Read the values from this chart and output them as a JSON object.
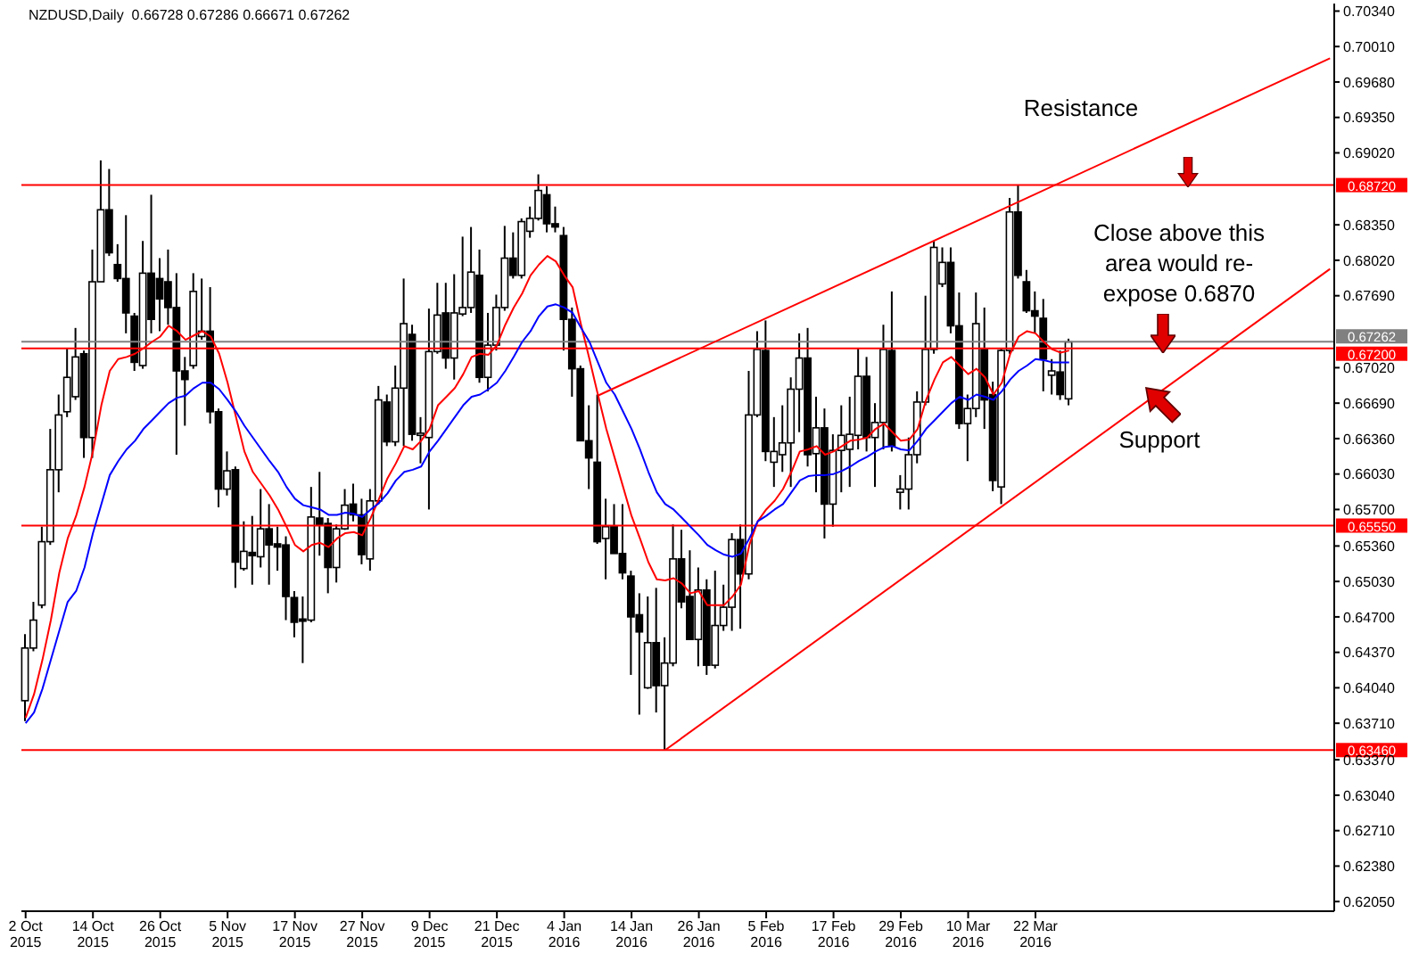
{
  "chart_data": {
    "type": "candlestick",
    "title": "NZDUSD,Daily  0.66728 0.67286 0.66671 0.67262",
    "categories": [
      "2 Oct 2015",
      null,
      null,
      null,
      null,
      null,
      null,
      null,
      "14 Oct 2015",
      null,
      null,
      null,
      null,
      null,
      null,
      null,
      "26 Oct 2015",
      null,
      null,
      null,
      null,
      null,
      null,
      null,
      "5 Nov 2015",
      null,
      null,
      null,
      null,
      null,
      null,
      null,
      "17 Nov 2015",
      null,
      null,
      null,
      null,
      null,
      null,
      null,
      "27 Nov 2015",
      null,
      null,
      null,
      null,
      null,
      null,
      null,
      "9 Dec 2015",
      null,
      null,
      null,
      null,
      null,
      null,
      null,
      "21 Dec 2015",
      null,
      null,
      null,
      null,
      null,
      null,
      null,
      "4 Jan 2016",
      null,
      null,
      null,
      null,
      null,
      null,
      null,
      "14 Jan 2016",
      null,
      null,
      null,
      null,
      null,
      null,
      null,
      "26 Jan 2016",
      null,
      null,
      null,
      null,
      null,
      null,
      null,
      "5 Feb 2016",
      null,
      null,
      null,
      null,
      null,
      null,
      null,
      "17 Feb 2016",
      null,
      null,
      null,
      null,
      null,
      null,
      null,
      "29 Feb 2016",
      null,
      null,
      null,
      null,
      null,
      null,
      null,
      "10 Mar 2016",
      null,
      null,
      null,
      null,
      null,
      null,
      null,
      "22 Mar 2016",
      null,
      null,
      null,
      null,
      null,
      null,
      null,
      null,
      null,
      null,
      null,
      null,
      null,
      null,
      null,
      null,
      null,
      null,
      null,
      null,
      null,
      null,
      null,
      null,
      null,
      null,
      null,
      null,
      null,
      null,
      null,
      null,
      null,
      null,
      null
    ],
    "ohlc": [
      [
        0.6392,
        0.6454,
        0.6373,
        0.6441
      ],
      [
        0.6441,
        0.6484,
        0.6438,
        0.6467
      ],
      [
        0.6481,
        0.6554,
        0.6478,
        0.654
      ],
      [
        0.654,
        0.6645,
        0.6537,
        0.6607
      ],
      [
        0.6607,
        0.6677,
        0.6586,
        0.6658
      ],
      [
        0.6661,
        0.672,
        0.6656,
        0.6693
      ],
      [
        0.6675,
        0.6739,
        0.6672,
        0.6712
      ],
      [
        0.6715,
        0.6718,
        0.6618,
        0.6637
      ],
      [
        0.6637,
        0.6812,
        0.6618,
        0.6782
      ],
      [
        0.6782,
        0.6895,
        0.6782,
        0.6849
      ],
      [
        0.6849,
        0.6887,
        0.6806,
        0.6809
      ],
      [
        0.6798,
        0.6817,
        0.6782,
        0.6785
      ],
      [
        0.6785,
        0.6844,
        0.6734,
        0.6753
      ],
      [
        0.675,
        0.6753,
        0.6699,
        0.6707
      ],
      [
        0.6704,
        0.682,
        0.6701,
        0.679
      ],
      [
        0.679,
        0.6863,
        0.6734,
        0.6747
      ],
      [
        0.6785,
        0.6804,
        0.6736,
        0.6766
      ],
      [
        0.6782,
        0.6812,
        0.6742,
        0.6758
      ],
      [
        0.6758,
        0.679,
        0.6621,
        0.6699
      ],
      [
        0.6699,
        0.6712,
        0.6648,
        0.6691
      ],
      [
        0.6704,
        0.679,
        0.6701,
        0.6773
      ],
      [
        0.6731,
        0.6785,
        0.6728,
        0.6736
      ],
      [
        0.6736,
        0.6777,
        0.665,
        0.6661
      ],
      [
        0.6661,
        0.6664,
        0.6572,
        0.6589
      ],
      [
        0.6589,
        0.6624,
        0.6583,
        0.6606
      ],
      [
        0.6607,
        0.661,
        0.6497,
        0.6521
      ],
      [
        0.6515,
        0.6559,
        0.6513,
        0.6531
      ],
      [
        0.653,
        0.6564,
        0.65,
        0.6527
      ],
      [
        0.6526,
        0.6589,
        0.6516,
        0.6552
      ],
      [
        0.6552,
        0.6575,
        0.65,
        0.6537
      ],
      [
        0.6538,
        0.6554,
        0.6513,
        0.6535
      ],
      [
        0.6537,
        0.6545,
        0.6467,
        0.6489
      ],
      [
        0.6488,
        0.6494,
        0.6451,
        0.6465
      ],
      [
        0.6468,
        0.6489,
        0.6427,
        0.6466
      ],
      [
        0.6467,
        0.6591,
        0.6465,
        0.6563
      ],
      [
        0.6562,
        0.6605,
        0.6527,
        0.6556
      ],
      [
        0.6557,
        0.6562,
        0.6492,
        0.6516
      ],
      [
        0.6516,
        0.6556,
        0.6502,
        0.6552
      ],
      [
        0.6552,
        0.6589,
        0.6551,
        0.6574
      ],
      [
        0.6575,
        0.6594,
        0.6559,
        0.6565
      ],
      [
        0.6565,
        0.658,
        0.6519,
        0.6528
      ],
      [
        0.6524,
        0.6589,
        0.6513,
        0.6578
      ],
      [
        0.6578,
        0.6685,
        0.6575,
        0.6672
      ],
      [
        0.667,
        0.6677,
        0.6629,
        0.6633
      ],
      [
        0.6633,
        0.6704,
        0.6629,
        0.6683
      ],
      [
        0.6683,
        0.6785,
        0.6629,
        0.6743
      ],
      [
        0.6733,
        0.6742,
        0.6634,
        0.664
      ],
      [
        0.6639,
        0.6656,
        0.6613,
        0.6641
      ],
      [
        0.6637,
        0.6757,
        0.657,
        0.6717
      ],
      [
        0.6717,
        0.6781,
        0.6715,
        0.6751
      ],
      [
        0.6753,
        0.6781,
        0.6701,
        0.6711
      ],
      [
        0.6711,
        0.6789,
        0.6691,
        0.6753
      ],
      [
        0.6752,
        0.6824,
        0.675,
        0.6758
      ],
      [
        0.6758,
        0.6833,
        0.6753,
        0.6791
      ],
      [
        0.6788,
        0.6812,
        0.6688,
        0.6693
      ],
      [
        0.6693,
        0.6753,
        0.668,
        0.6723
      ],
      [
        0.6723,
        0.677,
        0.6718,
        0.6758
      ],
      [
        0.6758,
        0.6834,
        0.6755,
        0.6804
      ],
      [
        0.6804,
        0.6828,
        0.6785,
        0.6788
      ],
      [
        0.6788,
        0.6841,
        0.6785,
        0.6838
      ],
      [
        0.6829,
        0.6852,
        0.6823,
        0.6841
      ],
      [
        0.6841,
        0.6882,
        0.6839,
        0.6867
      ],
      [
        0.6863,
        0.6871,
        0.6828,
        0.6836
      ],
      [
        0.6836,
        0.6852,
        0.6828,
        0.6833
      ],
      [
        0.6825,
        0.6833,
        0.6718,
        0.6747
      ],
      [
        0.6747,
        0.6758,
        0.6675,
        0.6701
      ],
      [
        0.6701,
        0.6704,
        0.6634,
        0.6634
      ],
      [
        0.6634,
        0.6667,
        0.6589,
        0.6618
      ],
      [
        0.6614,
        0.6677,
        0.6538,
        0.654
      ],
      [
        0.6543,
        0.658,
        0.6505,
        0.6554
      ],
      [
        0.6554,
        0.6575,
        0.6529,
        0.6529
      ],
      [
        0.6529,
        0.6575,
        0.6505,
        0.6511
      ],
      [
        0.6508,
        0.6513,
        0.6416,
        0.647
      ],
      [
        0.6472,
        0.6492,
        0.6379,
        0.6456
      ],
      [
        0.6404,
        0.6489,
        0.6403,
        0.6446
      ],
      [
        0.6446,
        0.6497,
        0.6381,
        0.6406
      ],
      [
        0.6406,
        0.6451,
        0.6346,
        0.6427
      ],
      [
        0.6427,
        0.6556,
        0.6424,
        0.6524
      ],
      [
        0.6524,
        0.6551,
        0.6478,
        0.6484
      ],
      [
        0.6489,
        0.6532,
        0.6449,
        0.6449
      ],
      [
        0.6449,
        0.6516,
        0.6424,
        0.6495
      ],
      [
        0.6495,
        0.6505,
        0.6416,
        0.6425
      ],
      [
        0.6425,
        0.6513,
        0.6422,
        0.6462
      ],
      [
        0.6462,
        0.65,
        0.6457,
        0.6479
      ],
      [
        0.6479,
        0.6548,
        0.6457,
        0.6542
      ],
      [
        0.6542,
        0.6556,
        0.6459,
        0.651
      ],
      [
        0.651,
        0.6699,
        0.6505,
        0.6658
      ],
      [
        0.6658,
        0.6736,
        0.6656,
        0.6719
      ],
      [
        0.6718,
        0.6746,
        0.6615,
        0.6624
      ],
      [
        0.6614,
        0.6656,
        0.6591,
        0.6624
      ],
      [
        0.6621,
        0.6667,
        0.6605,
        0.6632
      ],
      [
        0.6632,
        0.6693,
        0.6591,
        0.6682
      ],
      [
        0.6682,
        0.6734,
        0.6642,
        0.6711
      ],
      [
        0.6711,
        0.6739,
        0.661,
        0.6621
      ],
      [
        0.6622,
        0.6675,
        0.6586,
        0.6646
      ],
      [
        0.6646,
        0.6664,
        0.6543,
        0.6575
      ],
      [
        0.6575,
        0.664,
        0.6554,
        0.6625
      ],
      [
        0.6625,
        0.6667,
        0.6586,
        0.6639
      ],
      [
        0.6626,
        0.6675,
        0.6591,
        0.664
      ],
      [
        0.6639,
        0.672,
        0.6626,
        0.6694
      ],
      [
        0.6694,
        0.6712,
        0.6624,
        0.6637
      ],
      [
        0.6637,
        0.6669,
        0.6591,
        0.6651
      ],
      [
        0.6651,
        0.6742,
        0.6626,
        0.6719
      ],
      [
        0.6718,
        0.6773,
        0.6624,
        0.6629
      ],
      [
        0.6586,
        0.6602,
        0.657,
        0.6589
      ],
      [
        0.6589,
        0.6637,
        0.657,
        0.6621
      ],
      [
        0.6621,
        0.668,
        0.6613,
        0.667
      ],
      [
        0.667,
        0.6769,
        0.6667,
        0.6719
      ],
      [
        0.6719,
        0.682,
        0.6715,
        0.6814
      ],
      [
        0.678,
        0.6814,
        0.6777,
        0.68
      ],
      [
        0.68,
        0.6814,
        0.6734,
        0.6741
      ],
      [
        0.6741,
        0.6772,
        0.6645,
        0.665
      ],
      [
        0.665,
        0.6677,
        0.6615,
        0.6664
      ],
      [
        0.6664,
        0.6772,
        0.6656,
        0.6743
      ],
      [
        0.6719,
        0.6758,
        0.6645,
        0.6672
      ],
      [
        0.6677,
        0.6689,
        0.6587,
        0.6597
      ],
      [
        0.6591,
        0.672,
        0.6575,
        0.6718
      ],
      [
        0.6718,
        0.686,
        0.6715,
        0.6847
      ],
      [
        0.6847,
        0.6872,
        0.6785,
        0.6788
      ],
      [
        0.6782,
        0.6793,
        0.6753,
        0.6755
      ],
      [
        0.6755,
        0.6773,
        0.6734,
        0.675
      ],
      [
        0.6748,
        0.6766,
        0.668,
        0.671
      ],
      [
        0.6695,
        0.671,
        0.6677,
        0.6699
      ],
      [
        0.6698,
        0.6718,
        0.6672,
        0.6677
      ],
      [
        0.6673,
        0.6729,
        0.6667,
        0.6726
      ],
      null,
      null,
      null,
      null,
      null,
      null,
      null,
      null,
      null,
      null,
      null,
      null,
      null,
      null,
      null,
      null,
      null,
      null,
      null,
      null,
      null,
      null,
      null,
      null,
      null,
      null,
      null,
      null,
      null,
      null,
      null
    ],
    "series": [
      {
        "type": "line",
        "color": "#ff0000",
        "values": [
          0.6376,
          0.6398,
          0.643,
          0.6467,
          0.6511,
          0.6543,
          0.6564,
          0.6591,
          0.6624,
          0.6667,
          0.6699,
          0.671,
          0.6712,
          0.6715,
          0.672,
          0.6726,
          0.6731,
          0.6741,
          0.6736,
          0.6728,
          0.6732,
          0.6736,
          0.6731,
          0.6715,
          0.6688,
          0.6656,
          0.6624,
          0.6605,
          0.6594,
          0.6583,
          0.657,
          0.6554,
          0.6537,
          0.6531,
          0.6537,
          0.6539,
          0.6535,
          0.6543,
          0.6548,
          0.6549,
          0.6546,
          0.6562,
          0.658,
          0.6599,
          0.6613,
          0.6629,
          0.6626,
          0.6634,
          0.6645,
          0.6667,
          0.6675,
          0.6683,
          0.6696,
          0.6712,
          0.6715,
          0.6714,
          0.6723,
          0.6742,
          0.6758,
          0.6771,
          0.6788,
          0.6798,
          0.6806,
          0.6801,
          0.6788,
          0.6777,
          0.6742,
          0.671,
          0.6677,
          0.6645,
          0.6618,
          0.6591,
          0.6564,
          0.6543,
          0.6521,
          0.6505,
          0.6504,
          0.6506,
          0.6501,
          0.6492,
          0.6494,
          0.6481,
          0.6481,
          0.6481,
          0.6489,
          0.65,
          0.6537,
          0.6559,
          0.657,
          0.6578,
          0.6589,
          0.6605,
          0.6624,
          0.6626,
          0.6629,
          0.6621,
          0.6624,
          0.6629,
          0.6634,
          0.6635,
          0.6637,
          0.6645,
          0.665,
          0.6642,
          0.6634,
          0.6635,
          0.6645,
          0.6672,
          0.6691,
          0.6707,
          0.6712,
          0.6704,
          0.6696,
          0.6701,
          0.6693,
          0.6677,
          0.6688,
          0.6715,
          0.6731,
          0.6736,
          0.6734,
          0.6726,
          0.6719,
          0.6716,
          0.6718,
          null,
          null,
          null,
          null,
          null,
          null,
          null,
          null,
          null,
          null,
          null,
          null,
          null,
          null,
          null,
          null,
          null,
          null,
          null,
          null,
          null,
          null,
          null,
          null,
          null,
          null,
          null,
          null,
          null,
          null,
          null
        ]
      },
      {
        "type": "line",
        "color": "#0000ff",
        "values": [
          0.6371,
          0.6381,
          0.6403,
          0.643,
          0.6457,
          0.6484,
          0.6494,
          0.6516,
          0.6548,
          0.6575,
          0.6602,
          0.6615,
          0.6626,
          0.6634,
          0.6645,
          0.6653,
          0.6661,
          0.6669,
          0.6674,
          0.6676,
          0.6683,
          0.6688,
          0.6688,
          0.6682,
          0.6672,
          0.6661,
          0.6648,
          0.6637,
          0.6626,
          0.6615,
          0.6605,
          0.6591,
          0.658,
          0.6574,
          0.6572,
          0.657,
          0.6565,
          0.6565,
          0.6567,
          0.6566,
          0.6563,
          0.657,
          0.6576,
          0.6585,
          0.6597,
          0.6605,
          0.6607,
          0.661,
          0.6624,
          0.6634,
          0.6645,
          0.6656,
          0.6667,
          0.6675,
          0.6677,
          0.6682,
          0.6688,
          0.6699,
          0.6712,
          0.6726,
          0.6736,
          0.675,
          0.6759,
          0.6761,
          0.6758,
          0.6753,
          0.6739,
          0.6726,
          0.6707,
          0.6688,
          0.6677,
          0.6661,
          0.6645,
          0.6626,
          0.6605,
          0.6586,
          0.6575,
          0.657,
          0.6562,
          0.6554,
          0.6546,
          0.6537,
          0.6532,
          0.6528,
          0.6526,
          0.6529,
          0.6543,
          0.6559,
          0.6564,
          0.657,
          0.6575,
          0.6586,
          0.6597,
          0.6601,
          0.6602,
          0.6602,
          0.6603,
          0.6606,
          0.661,
          0.6615,
          0.6619,
          0.6624,
          0.6628,
          0.6629,
          0.6626,
          0.6625,
          0.6634,
          0.6645,
          0.6653,
          0.6661,
          0.6669,
          0.6675,
          0.6672,
          0.6677,
          0.6675,
          0.6672,
          0.668,
          0.6691,
          0.6699,
          0.6704,
          0.671,
          0.6709,
          0.6707,
          0.6707,
          0.6707,
          null,
          null,
          null,
          null,
          null,
          null,
          null,
          null,
          null,
          null,
          null,
          null,
          null,
          null,
          null,
          null,
          null,
          null,
          null,
          null,
          null,
          null,
          null,
          null,
          null,
          null,
          null,
          null,
          null,
          null,
          null
        ]
      },
      {
        "type": "line",
        "color": "#ff0000",
        "values": [
          null,
          null,
          null,
          null,
          null,
          null,
          null,
          null,
          null,
          null,
          null,
          null,
          null,
          null,
          null,
          null,
          null,
          null,
          null,
          null,
          null,
          null,
          null,
          null,
          null,
          null,
          null,
          null,
          null,
          null,
          null,
          null,
          null,
          null,
          null,
          null,
          null,
          null,
          null,
          null,
          null,
          null,
          null,
          null,
          null,
          null,
          null,
          null,
          null,
          null,
          null,
          null,
          null,
          null,
          null,
          null,
          null,
          null,
          null,
          null,
          null,
          null,
          null,
          null,
          null,
          null,
          null,
          null,
          0.6676,
          null,
          null,
          null,
          null,
          null,
          null,
          null,
          null,
          null,
          null,
          null,
          null,
          null,
          null,
          null,
          null,
          null,
          null,
          null,
          null,
          null,
          null,
          null,
          null,
          null,
          null,
          null,
          null,
          null,
          null,
          null,
          null,
          null,
          null,
          null,
          null,
          null,
          null,
          null,
          null,
          null,
          null,
          null,
          null,
          null,
          null,
          null,
          null,
          null,
          null,
          null,
          null,
          null,
          null,
          null,
          null,
          null,
          null,
          null,
          null,
          null,
          null,
          null,
          null,
          null,
          null,
          null,
          null,
          null,
          null,
          null,
          null,
          null,
          null,
          null,
          null,
          null,
          null,
          null,
          null,
          null,
          null,
          null,
          null,
          null,
          null,
          0.699
        ]
      },
      {
        "type": "line",
        "color": "#ff0000",
        "values": [
          null,
          null,
          null,
          null,
          null,
          null,
          null,
          null,
          null,
          null,
          null,
          null,
          null,
          null,
          null,
          null,
          null,
          null,
          null,
          null,
          null,
          null,
          null,
          null,
          null,
          null,
          null,
          null,
          null,
          null,
          null,
          null,
          null,
          null,
          null,
          null,
          null,
          null,
          null,
          null,
          null,
          null,
          null,
          null,
          null,
          null,
          null,
          null,
          null,
          null,
          null,
          null,
          null,
          null,
          null,
          null,
          null,
          null,
          null,
          null,
          null,
          null,
          null,
          null,
          null,
          null,
          null,
          null,
          null,
          null,
          null,
          null,
          null,
          null,
          null,
          null,
          0.6346,
          null,
          null,
          null,
          null,
          null,
          null,
          null,
          null,
          null,
          null,
          null,
          null,
          null,
          null,
          null,
          null,
          null,
          null,
          null,
          null,
          null,
          null,
          null,
          null,
          null,
          null,
          null,
          null,
          null,
          null,
          null,
          null,
          null,
          null,
          null,
          null,
          null,
          null,
          null,
          null,
          null,
          null,
          null,
          null,
          null,
          null,
          null,
          null,
          null,
          null,
          null,
          null,
          null,
          null,
          null,
          null,
          null,
          null,
          null,
          null,
          null,
          null,
          null,
          null,
          null,
          null,
          null,
          null,
          null,
          null,
          null,
          null,
          null,
          null,
          null,
          null,
          null,
          null,
          0.6794
        ]
      }
    ],
    "ylim": [
      0.6196,
      0.7041
    ],
    "yticks": [
      {
        "value": 0.6205,
        "label": "0.62050"
      },
      {
        "value": 0.6238,
        "label": "0.62380"
      },
      {
        "value": 0.6271,
        "label": "0.62710"
      },
      {
        "value": 0.6304,
        "label": "0.63040"
      },
      {
        "value": 0.6337,
        "label": "0.63370"
      },
      {
        "value": 0.6371,
        "label": "0.63710"
      },
      {
        "value": 0.6404,
        "label": "0.64040"
      },
      {
        "value": 0.6437,
        "label": "0.64370"
      },
      {
        "value": 0.647,
        "label": "0.64700"
      },
      {
        "value": 0.6503,
        "label": "0.65030"
      },
      {
        "value": 0.6536,
        "label": "0.65360"
      },
      {
        "value": 0.657,
        "label": "0.65700"
      },
      {
        "value": 0.6603,
        "label": "0.66030"
      },
      {
        "value": 0.6636,
        "label": "0.66360"
      },
      {
        "value": 0.6669,
        "label": "0.66690"
      },
      {
        "value": 0.6702,
        "label": "0.67020"
      },
      {
        "value": 0.6769,
        "label": "0.67690"
      },
      {
        "value": 0.6802,
        "label": "0.68020"
      },
      {
        "value": 0.6835,
        "label": "0.68350"
      },
      {
        "value": 0.6902,
        "label": "0.69020"
      },
      {
        "value": 0.6935,
        "label": "0.69350"
      },
      {
        "value": 0.6968,
        "label": "0.69680"
      },
      {
        "value": 0.7001,
        "label": "0.70010"
      },
      {
        "value": 0.7034,
        "label": "0.70340"
      }
    ],
    "ref_lines": [
      {
        "axis": "y",
        "value": 0.6872,
        "label": "0.68720",
        "color": "#ff0000"
      },
      {
        "axis": "y",
        "value": 0.67262,
        "label": "0.67262",
        "color": "#808080"
      },
      {
        "axis": "y",
        "value": 0.672,
        "label": "0.67200",
        "color": "#ff0000"
      },
      {
        "axis": "y",
        "value": 0.6555,
        "label": "0.65550",
        "color": "#ff0000"
      },
      {
        "axis": "y",
        "value": 0.6346,
        "label": "0.63460",
        "color": "#ff0000"
      }
    ],
    "annotations": [
      "Resistance",
      "Close above this area would re-expose 0.6870",
      "Support"
    ]
  }
}
